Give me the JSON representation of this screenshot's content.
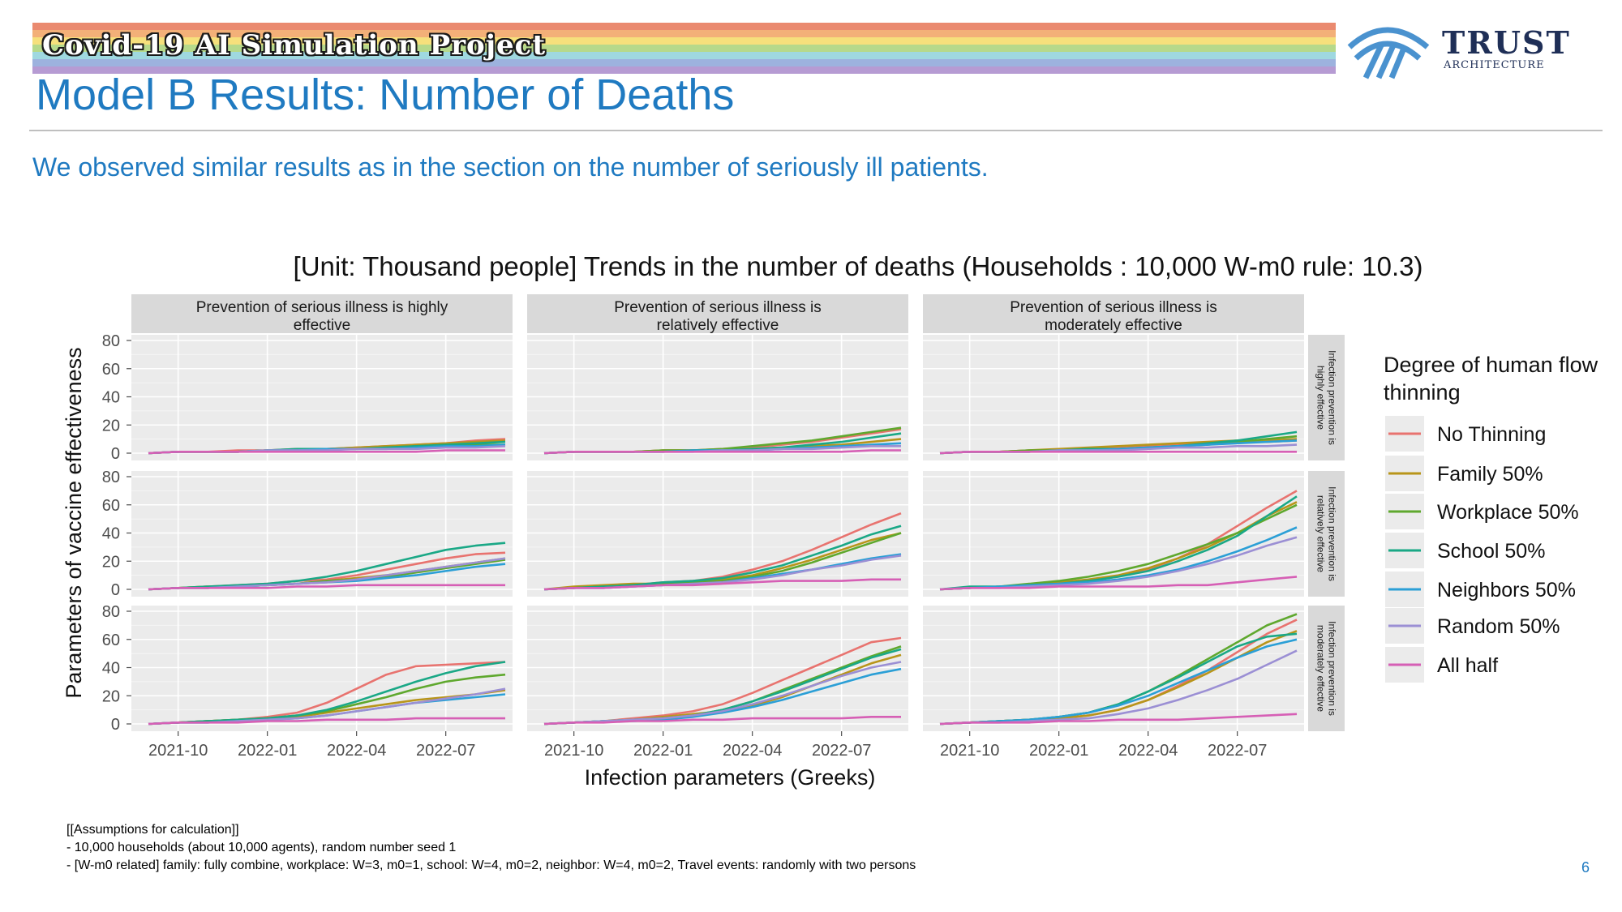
{
  "header": {
    "project_label": "Covid-19 AI Simulation Project",
    "logo_text": "TRUST",
    "logo_subtext": "ARCHITECTURE",
    "title": "Model B Results: Number of Deaths",
    "subtitle": "We observed similar results as in the section on the number of seriously ill patients.",
    "rainbow_colors": [
      "#ea8a6f",
      "#f3b078",
      "#f6e07c",
      "#b6d98b",
      "#9fd8e0",
      "#9db2de",
      "#b69bd3"
    ]
  },
  "chart_data": {
    "type": "line",
    "title": "[Unit: Thousand people] Trends in the number of deaths (Households : 10,000 W-m0 rule: 10.3)",
    "xlabel": "Infection parameters (Greeks)",
    "ylabel": "Parameters of vaccine effectiveness",
    "x_ticks": [
      "2021-10",
      "2022-01",
      "2022-04",
      "2022-07"
    ],
    "x_range": [
      "2021-09",
      "2022-09"
    ],
    "y_ticks": [
      0,
      20,
      40,
      60,
      80
    ],
    "ylim": [
      0,
      80
    ],
    "grid": true,
    "columns": [
      "Prevention of serious illness is highly effective",
      "Prevention of serious illness is relatively effective",
      "Prevention of serious illness is moderately effective"
    ],
    "rows": [
      "Infection prevention is highly effective",
      "Infection prevention is relatively effective",
      "Infection prevention is moderately effective"
    ],
    "legend": {
      "title": "Degree of human flow thinning",
      "position": "right",
      "entries": [
        {
          "name": "No Thinning",
          "color": "#e8736f"
        },
        {
          "name": "Family 50%",
          "color": "#b8951a"
        },
        {
          "name": "Workplace 50%",
          "color": "#5fa82e"
        },
        {
          "name": "School 50%",
          "color": "#1aa886"
        },
        {
          "name": "Neighbors 50%",
          "color": "#2b9fd6"
        },
        {
          "name": "Random 50%",
          "color": "#9b8fd4"
        },
        {
          "name": "All half",
          "color": "#d65fb5"
        }
      ]
    },
    "x_dates": [
      "2021-09",
      "2021-10",
      "2021-11",
      "2021-12",
      "2022-01",
      "2022-02",
      "2022-03",
      "2022-04",
      "2022-05",
      "2022-06",
      "2022-07",
      "2022-08",
      "2022-09"
    ],
    "panels": [
      [
        {
          "series": [
            [
              0,
              1,
              1,
              2,
              2,
              3,
              3,
              4,
              5,
              6,
              7,
              9,
              10
            ],
            [
              0,
              1,
              1,
              1,
              2,
              2,
              3,
              4,
              5,
              6,
              7,
              8,
              9
            ],
            [
              0,
              1,
              1,
              1,
              2,
              2,
              3,
              3,
              4,
              5,
              5,
              6,
              6
            ],
            [
              0,
              1,
              1,
              1,
              2,
              3,
              3,
              3,
              4,
              5,
              6,
              7,
              8
            ],
            [
              0,
              1,
              1,
              1,
              2,
              2,
              3,
              3,
              3,
              4,
              5,
              5,
              6
            ],
            [
              0,
              1,
              1,
              1,
              2,
              2,
              2,
              3,
              3,
              3,
              4,
              4,
              5
            ],
            [
              0,
              1,
              1,
              1,
              1,
              1,
              1,
              1,
              1,
              1,
              2,
              2,
              2
            ]
          ]
        },
        {
          "series": [
            [
              0,
              1,
              1,
              1,
              2,
              2,
              3,
              4,
              6,
              8,
              11,
              14,
              17
            ],
            [
              0,
              1,
              1,
              1,
              2,
              2,
              2,
              3,
              4,
              5,
              6,
              8,
              10
            ],
            [
              0,
              1,
              1,
              1,
              2,
              2,
              3,
              5,
              7,
              9,
              12,
              15,
              18
            ],
            [
              0,
              1,
              1,
              1,
              1,
              2,
              2,
              3,
              4,
              6,
              8,
              11,
              14
            ],
            [
              0,
              1,
              1,
              1,
              1,
              2,
              2,
              2,
              3,
              4,
              5,
              6,
              7
            ],
            [
              0,
              1,
              1,
              1,
              1,
              1,
              2,
              2,
              3,
              3,
              4,
              5,
              5
            ],
            [
              0,
              1,
              1,
              1,
              1,
              1,
              1,
              1,
              1,
              1,
              1,
              2,
              2
            ]
          ]
        },
        {
          "series": [
            [
              0,
              1,
              1,
              2,
              2,
              3,
              4,
              5,
              6,
              7,
              8,
              8,
              9
            ],
            [
              0,
              1,
              1,
              2,
              3,
              4,
              5,
              6,
              7,
              8,
              9,
              9,
              10
            ],
            [
              0,
              1,
              1,
              2,
              2,
              3,
              3,
              4,
              5,
              6,
              8,
              10,
              12
            ],
            [
              0,
              1,
              1,
              1,
              2,
              3,
              3,
              4,
              5,
              7,
              9,
              12,
              15
            ],
            [
              0,
              1,
              1,
              1,
              2,
              2,
              3,
              4,
              5,
              6,
              7,
              8,
              9
            ],
            [
              0,
              1,
              1,
              1,
              2,
              2,
              2,
              3,
              4,
              4,
              5,
              5,
              6
            ],
            [
              0,
              1,
              1,
              1,
              1,
              1,
              1,
              1,
              1,
              1,
              1,
              1,
              1
            ]
          ]
        }
      ],
      [
        {
          "series": [
            [
              0,
              1,
              2,
              3,
              4,
              6,
              7,
              10,
              14,
              18,
              22,
              25,
              26
            ],
            [
              0,
              1,
              2,
              2,
              3,
              4,
              6,
              8,
              10,
              13,
              16,
              19,
              22
            ],
            [
              0,
              1,
              1,
              2,
              3,
              4,
              6,
              7,
              9,
              12,
              15,
              18,
              21
            ],
            [
              0,
              1,
              2,
              3,
              4,
              6,
              9,
              13,
              18,
              23,
              28,
              31,
              33
            ],
            [
              0,
              1,
              1,
              2,
              3,
              4,
              5,
              6,
              8,
              10,
              13,
              16,
              18
            ],
            [
              0,
              1,
              1,
              2,
              3,
              4,
              5,
              7,
              10,
              13,
              16,
              19,
              22
            ],
            [
              0,
              1,
              1,
              1,
              1,
              2,
              2,
              3,
              3,
              3,
              3,
              3,
              3
            ]
          ]
        },
        {
          "series": [
            [
              0,
              1,
              2,
              3,
              5,
              6,
              9,
              14,
              20,
              28,
              37,
              46,
              54
            ],
            [
              0,
              2,
              3,
              4,
              4,
              5,
              7,
              10,
              15,
              21,
              28,
              35,
              40
            ],
            [
              0,
              1,
              2,
              3,
              4,
              5,
              6,
              9,
              13,
              19,
              26,
              33,
              40
            ],
            [
              0,
              1,
              2,
              3,
              5,
              6,
              8,
              12,
              17,
              24,
              31,
              39,
              45
            ],
            [
              0,
              1,
              1,
              2,
              3,
              4,
              5,
              8,
              11,
              14,
              18,
              22,
              25
            ],
            [
              0,
              1,
              1,
              2,
              3,
              4,
              5,
              7,
              10,
              14,
              17,
              21,
              24
            ],
            [
              0,
              1,
              1,
              2,
              3,
              3,
              4,
              5,
              6,
              6,
              6,
              7,
              7
            ]
          ]
        },
        {
          "series": [
            [
              0,
              1,
              2,
              3,
              4,
              6,
              9,
              14,
              22,
              32,
              45,
              58,
              70
            ],
            [
              0,
              1,
              2,
              3,
              5,
              7,
              10,
              15,
              22,
              30,
              40,
              52,
              62
            ],
            [
              0,
              1,
              2,
              4,
              6,
              9,
              13,
              18,
              25,
              32,
              40,
              50,
              60
            ],
            [
              0,
              2,
              2,
              3,
              4,
              6,
              9,
              13,
              20,
              28,
              38,
              52,
              66
            ],
            [
              0,
              1,
              2,
              3,
              4,
              5,
              7,
              10,
              14,
              20,
              27,
              35,
              44
            ],
            [
              0,
              1,
              1,
              2,
              3,
              4,
              6,
              9,
              13,
              18,
              24,
              31,
              37
            ],
            [
              0,
              1,
              1,
              1,
              2,
              2,
              2,
              2,
              3,
              3,
              5,
              7,
              9
            ]
          ]
        }
      ],
      [
        {
          "series": [
            [
              0,
              1,
              2,
              3,
              5,
              8,
              15,
              25,
              35,
              41,
              42,
              43,
              44
            ],
            [
              0,
              1,
              2,
              3,
              4,
              5,
              8,
              11,
              14,
              17,
              19,
              21,
              24
            ],
            [
              0,
              1,
              2,
              3,
              4,
              6,
              9,
              14,
              19,
              25,
              30,
              33,
              35
            ],
            [
              0,
              1,
              2,
              3,
              4,
              6,
              10,
              16,
              23,
              30,
              36,
              41,
              44
            ],
            [
              0,
              1,
              1,
              2,
              3,
              4,
              6,
              9,
              12,
              15,
              17,
              19,
              21
            ],
            [
              0,
              1,
              1,
              2,
              3,
              4,
              6,
              9,
              12,
              15,
              18,
              21,
              25
            ],
            [
              0,
              1,
              1,
              1,
              2,
              2,
              3,
              3,
              3,
              4,
              4,
              4,
              4
            ]
          ]
        },
        {
          "series": [
            [
              0,
              1,
              2,
              4,
              6,
              9,
              14,
              22,
              31,
              40,
              49,
              58,
              61
            ],
            [
              0,
              1,
              2,
              3,
              5,
              7,
              9,
              13,
              19,
              27,
              35,
              43,
              49
            ],
            [
              0,
              1,
              2,
              3,
              4,
              6,
              10,
              16,
              24,
              32,
              40,
              48,
              55
            ],
            [
              0,
              1,
              2,
              3,
              4,
              6,
              10,
              16,
              23,
              31,
              39,
              47,
              53
            ],
            [
              0,
              1,
              2,
              2,
              3,
              5,
              8,
              12,
              17,
              23,
              29,
              35,
              39
            ],
            [
              0,
              1,
              2,
              3,
              4,
              6,
              9,
              14,
              20,
              27,
              34,
              40,
              44
            ],
            [
              0,
              1,
              1,
              2,
              2,
              3,
              3,
              4,
              4,
              4,
              4,
              5,
              5
            ]
          ]
        },
        {
          "series": [
            [
              0,
              1,
              2,
              3,
              4,
              6,
              10,
              17,
              27,
              38,
              51,
              64,
              74
            ],
            [
              0,
              1,
              2,
              3,
              4,
              6,
              10,
              17,
              26,
              36,
              47,
              58,
              66
            ],
            [
              0,
              1,
              2,
              3,
              5,
              8,
              14,
              23,
              34,
              46,
              58,
              70,
              78
            ],
            [
              0,
              1,
              2,
              3,
              5,
              8,
              14,
              23,
              33,
              44,
              55,
              62,
              64
            ],
            [
              0,
              1,
              2,
              3,
              5,
              8,
              13,
              20,
              29,
              38,
              47,
              55,
              60
            ],
            [
              0,
              1,
              1,
              2,
              3,
              4,
              7,
              11,
              17,
              24,
              32,
              42,
              52
            ],
            [
              0,
              1,
              1,
              1,
              2,
              2,
              3,
              3,
              3,
              4,
              5,
              6,
              7
            ]
          ]
        }
      ]
    ]
  },
  "footer": {
    "assumptions_header": "[[Assumptions for calculation]]",
    "line1": "- 10,000 households (about 10,000 agents), random number seed 1",
    "line2": "- [W-m0 related] family: fully combine, workplace: W=3, m0=1, school: W=4, m0=2, neighbor: W=4, m0=2, Travel events: randomly with two persons",
    "page_number": "6"
  }
}
